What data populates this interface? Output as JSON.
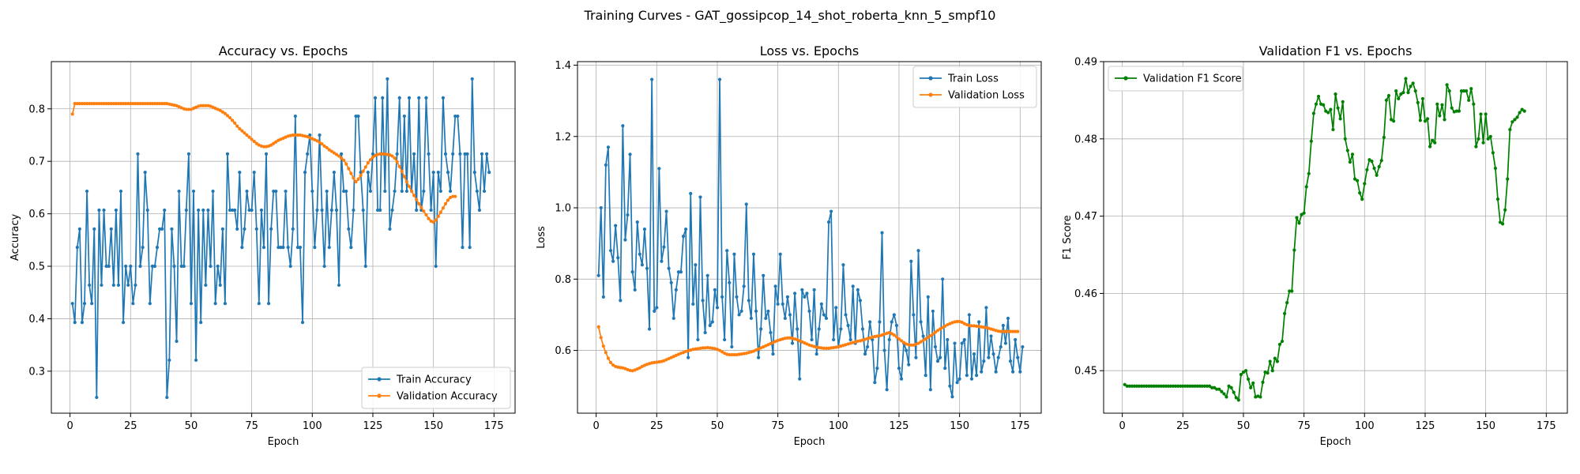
{
  "figure": {
    "suptitle": "Training Curves - GAT_gossipcop_14_shot_roberta_knn_5_smpf10"
  },
  "colors": {
    "train": "#1f77b4",
    "validation": "#ff7f0e",
    "f1": "#008000",
    "grid": "#b0b0b0",
    "axis": "#000000"
  },
  "chart_data": [
    {
      "type": "line",
      "title": "Accuracy vs. Epochs",
      "xlabel": "Epoch",
      "ylabel": "Accuracy",
      "xlim": [
        -7.7,
        183.7
      ],
      "ylim": [
        0.22,
        0.89
      ],
      "xticks": [
        0,
        25,
        50,
        75,
        100,
        125,
        150,
        175
      ],
      "yticks": [
        0.3,
        0.4,
        0.5,
        0.6,
        0.7,
        0.8
      ],
      "ytick_format": 1,
      "grid": true,
      "legend": "lower-right",
      "series": [
        {
          "name": "Train Accuracy",
          "color": "#1f77b4",
          "x_start": 1,
          "values": [
            0.429,
            0.393,
            0.536,
            0.571,
            0.393,
            0.429,
            0.643,
            0.464,
            0.429,
            0.571,
            0.25,
            0.607,
            0.464,
            0.607,
            0.5,
            0.5,
            0.571,
            0.464,
            0.607,
            0.464,
            0.643,
            0.393,
            0.5,
            0.464,
            0.5,
            0.429,
            0.464,
            0.714,
            0.5,
            0.536,
            0.679,
            0.607,
            0.429,
            0.5,
            0.5,
            0.536,
            0.571,
            0.571,
            0.607,
            0.25,
            0.321,
            0.571,
            0.5,
            0.357,
            0.643,
            0.5,
            0.5,
            0.607,
            0.714,
            0.429,
            0.643,
            0.321,
            0.607,
            0.393,
            0.607,
            0.464,
            0.607,
            0.5,
            0.643,
            0.429,
            0.5,
            0.464,
            0.571,
            0.429,
            0.714,
            0.607,
            0.607,
            0.607,
            0.571,
            0.679,
            0.536,
            0.571,
            0.643,
            0.607,
            0.607,
            0.679,
            0.571,
            0.429,
            0.607,
            0.536,
            0.714,
            0.429,
            0.571,
            0.643,
            0.643,
            0.536,
            0.536,
            0.536,
            0.643,
            0.536,
            0.5,
            0.571,
            0.786,
            0.536,
            0.536,
            0.393,
            0.679,
            0.714,
            0.75,
            0.643,
            0.536,
            0.607,
            0.75,
            0.607,
            0.5,
            0.643,
            0.536,
            0.607,
            0.679,
            0.607,
            0.464,
            0.714,
            0.643,
            0.643,
            0.571,
            0.536,
            0.607,
            0.786,
            0.786,
            0.679,
            0.607,
            0.5,
            0.679,
            0.643,
            0.714,
            0.821,
            0.607,
            0.607,
            0.821,
            0.643,
            0.857,
            0.571,
            0.607,
            0.643,
            0.714,
            0.821,
            0.643,
            0.786,
            0.643,
            0.821,
            0.643,
            0.714,
            0.607,
            0.821,
            0.607,
            0.643,
            0.821,
            0.714,
            0.607,
            0.679,
            0.5,
            0.679,
            0.643,
            0.821,
            0.714,
            0.679,
            0.643,
            0.714,
            0.786,
            0.786,
            0.714,
            0.536,
            0.714,
            0.714,
            0.536,
            0.857,
            0.679,
            0.643,
            0.607,
            0.714,
            0.643,
            0.714,
            0.679
          ]
        },
        {
          "name": "Validation Accuracy",
          "color": "#ff7f0e",
          "x_start": 1,
          "values": [
            0.79,
            0.81,
            0.81,
            0.81,
            0.81,
            0.81,
            0.81,
            0.81,
            0.81,
            0.81,
            0.81,
            0.81,
            0.81,
            0.81,
            0.81,
            0.81,
            0.81,
            0.81,
            0.81,
            0.81,
            0.81,
            0.81,
            0.81,
            0.81,
            0.81,
            0.81,
            0.81,
            0.81,
            0.81,
            0.81,
            0.81,
            0.81,
            0.81,
            0.81,
            0.81,
            0.81,
            0.81,
            0.81,
            0.81,
            0.81,
            0.809,
            0.808,
            0.807,
            0.806,
            0.804,
            0.802,
            0.8,
            0.799,
            0.799,
            0.799,
            0.801,
            0.803,
            0.805,
            0.806,
            0.806,
            0.806,
            0.806,
            0.805,
            0.803,
            0.801,
            0.799,
            0.797,
            0.794,
            0.791,
            0.787,
            0.783,
            0.778,
            0.773,
            0.767,
            0.762,
            0.758,
            0.754,
            0.75,
            0.746,
            0.742,
            0.738,
            0.734,
            0.731,
            0.729,
            0.728,
            0.728,
            0.729,
            0.731,
            0.734,
            0.737,
            0.74,
            0.742,
            0.744,
            0.746,
            0.748,
            0.749,
            0.75,
            0.75,
            0.75,
            0.75,
            0.749,
            0.748,
            0.747,
            0.745,
            0.743,
            0.741,
            0.739,
            0.736,
            0.733,
            0.729,
            0.726,
            0.722,
            0.719,
            0.716,
            0.713,
            0.71,
            0.706,
            0.702,
            0.695,
            0.686,
            0.677,
            0.668,
            0.661,
            0.666,
            0.673,
            0.681,
            0.689,
            0.697,
            0.703,
            0.708,
            0.711,
            0.713,
            0.714,
            0.714,
            0.714,
            0.713,
            0.712,
            0.71,
            0.706,
            0.699,
            0.69,
            0.681,
            0.671,
            0.661,
            0.652,
            0.643,
            0.635,
            0.627,
            0.619,
            0.612,
            0.605,
            0.598,
            0.591,
            0.586,
            0.584,
            0.588,
            0.595,
            0.603,
            0.611,
            0.619,
            0.626,
            0.631,
            0.633,
            0.633
          ]
        }
      ]
    },
    {
      "type": "line",
      "title": "Loss vs. Epochs",
      "xlabel": "Epoch",
      "ylabel": "Loss",
      "xlim": [
        -7.7,
        183.7
      ],
      "ylim": [
        0.424,
        1.41
      ],
      "xticks": [
        0,
        25,
        50,
        75,
        100,
        125,
        150,
        175
      ],
      "yticks": [
        0.6,
        0.8,
        1.0,
        1.2,
        1.4
      ],
      "ytick_format": 1,
      "grid": true,
      "legend": "upper-right",
      "series": [
        {
          "name": "Train Loss",
          "color": "#1f77b4",
          "x_start": 1,
          "values": [
            0.81,
            1.0,
            0.75,
            1.12,
            1.17,
            0.88,
            0.85,
            0.95,
            0.86,
            0.74,
            1.23,
            0.91,
            0.98,
            1.15,
            0.82,
            0.77,
            0.96,
            0.87,
            0.84,
            0.94,
            0.83,
            0.66,
            1.36,
            0.71,
            0.72,
            1.11,
            0.85,
            0.89,
            0.99,
            0.83,
            0.79,
            0.69,
            0.77,
            0.82,
            0.82,
            0.92,
            0.94,
            0.58,
            1.04,
            0.73,
            0.84,
            0.63,
            1.03,
            0.74,
            0.65,
            0.81,
            0.67,
            0.68,
            0.77,
            0.72,
            1.36,
            0.75,
            0.63,
            0.88,
            0.79,
            0.61,
            0.87,
            0.75,
            0.7,
            0.71,
            0.78,
            1.01,
            0.74,
            0.69,
            0.87,
            0.71,
            0.58,
            0.66,
            0.81,
            0.69,
            0.71,
            0.65,
            0.59,
            0.78,
            0.73,
            0.87,
            0.73,
            0.69,
            0.75,
            0.7,
            0.62,
            0.76,
            0.66,
            0.52,
            0.77,
            0.75,
            0.76,
            0.71,
            0.63,
            0.77,
            0.59,
            0.66,
            0.73,
            0.7,
            0.69,
            0.96,
            0.99,
            0.63,
            0.72,
            0.61,
            0.66,
            0.84,
            0.7,
            0.67,
            0.63,
            0.78,
            0.62,
            0.77,
            0.74,
            0.66,
            0.59,
            0.61,
            0.68,
            0.63,
            0.51,
            0.55,
            0.68,
            0.93,
            0.6,
            0.49,
            0.63,
            0.68,
            0.7,
            0.67,
            0.55,
            0.52,
            0.62,
            0.6,
            0.56,
            0.85,
            0.7,
            0.58,
            0.88,
            0.68,
            0.64,
            0.53,
            0.75,
            0.49,
            0.71,
            0.61,
            0.57,
            0.58,
            0.8,
            0.55,
            0.63,
            0.5,
            0.47,
            0.62,
            0.51,
            0.52,
            0.62,
            0.63,
            0.53,
            0.7,
            0.52,
            0.59,
            0.53,
            0.68,
            0.54,
            0.57,
            0.72,
            0.58,
            0.64,
            0.59,
            0.54,
            0.58,
            0.61,
            0.67,
            0.62,
            0.69,
            0.57,
            0.54,
            0.63,
            0.58,
            0.54,
            0.61
          ]
        },
        {
          "name": "Validation Loss",
          "color": "#ff7f0e",
          "x_start": 1,
          "values": [
            0.666,
            0.636,
            0.612,
            0.594,
            0.578,
            0.566,
            0.559,
            0.555,
            0.553,
            0.552,
            0.551,
            0.549,
            0.546,
            0.544,
            0.543,
            0.545,
            0.548,
            0.551,
            0.555,
            0.558,
            0.561,
            0.563,
            0.565,
            0.566,
            0.567,
            0.568,
            0.569,
            0.571,
            0.574,
            0.577,
            0.58,
            0.583,
            0.586,
            0.589,
            0.592,
            0.594,
            0.597,
            0.599,
            0.601,
            0.603,
            0.604,
            0.605,
            0.606,
            0.607,
            0.607,
            0.608,
            0.607,
            0.606,
            0.605,
            0.603,
            0.6,
            0.596,
            0.592,
            0.589,
            0.588,
            0.588,
            0.588,
            0.588,
            0.589,
            0.59,
            0.591,
            0.592,
            0.594,
            0.596,
            0.598,
            0.601,
            0.604,
            0.607,
            0.61,
            0.613,
            0.616,
            0.619,
            0.622,
            0.625,
            0.628,
            0.63,
            0.632,
            0.634,
            0.635,
            0.635,
            0.634,
            0.632,
            0.63,
            0.627,
            0.624,
            0.621,
            0.618,
            0.615,
            0.613,
            0.611,
            0.609,
            0.608,
            0.607,
            0.606,
            0.606,
            0.606,
            0.607,
            0.608,
            0.609,
            0.61,
            0.612,
            0.614,
            0.616,
            0.618,
            0.62,
            0.622,
            0.624,
            0.626,
            0.627,
            0.629,
            0.631,
            0.633,
            0.635,
            0.637,
            0.639,
            0.64,
            0.641,
            0.643,
            0.646,
            0.648,
            0.65,
            0.647,
            0.643,
            0.638,
            0.632,
            0.627,
            0.622,
            0.618,
            0.616,
            0.615,
            0.615,
            0.617,
            0.62,
            0.624,
            0.628,
            0.632,
            0.637,
            0.641,
            0.646,
            0.651,
            0.656,
            0.66,
            0.664,
            0.668,
            0.672,
            0.675,
            0.678,
            0.68,
            0.681,
            0.681,
            0.679,
            0.675,
            0.672,
            0.67,
            0.669,
            0.669,
            0.668,
            0.667,
            0.666,
            0.665,
            0.664,
            0.662,
            0.66,
            0.658,
            0.656,
            0.654,
            0.653,
            0.653,
            0.653,
            0.653,
            0.653,
            0.653,
            0.653,
            0.653
          ]
        }
      ]
    },
    {
      "type": "line",
      "title": "Validation F1 vs. Epochs",
      "xlabel": "Epoch",
      "ylabel": "F1 Score",
      "xlim": [
        -7.7,
        183.7
      ],
      "ylim": [
        0.4445,
        0.49
      ],
      "xticks": [
        0,
        25,
        50,
        75,
        100,
        125,
        150,
        175
      ],
      "yticks": [
        0.45,
        0.46,
        0.47,
        0.48,
        0.49
      ],
      "ytick_format": 2,
      "grid": true,
      "legend": "upper-left",
      "series": [
        {
          "name": "Validation F1 Score",
          "color": "#008000",
          "x_start": 1,
          "values": [
            0.4482,
            0.448,
            0.448,
            0.448,
            0.448,
            0.448,
            0.448,
            0.448,
            0.448,
            0.448,
            0.448,
            0.448,
            0.448,
            0.448,
            0.448,
            0.448,
            0.448,
            0.448,
            0.448,
            0.448,
            0.448,
            0.448,
            0.448,
            0.448,
            0.448,
            0.448,
            0.448,
            0.448,
            0.448,
            0.448,
            0.448,
            0.448,
            0.448,
            0.448,
            0.448,
            0.448,
            0.4478,
            0.4478,
            0.4476,
            0.4476,
            0.4473,
            0.447,
            0.4466,
            0.448,
            0.4478,
            0.4472,
            0.4465,
            0.4462,
            0.4495,
            0.4498,
            0.45,
            0.4489,
            0.4478,
            0.4484,
            0.4466,
            0.4467,
            0.4466,
            0.4485,
            0.4498,
            0.4497,
            0.4512,
            0.45,
            0.4516,
            0.4512,
            0.4534,
            0.4538,
            0.4574,
            0.4588,
            0.4603,
            0.4603,
            0.4656,
            0.4698,
            0.4691,
            0.4702,
            0.4704,
            0.4738,
            0.4755,
            0.4797,
            0.4833,
            0.4845,
            0.4855,
            0.4845,
            0.4844,
            0.4836,
            0.4834,
            0.4838,
            0.4812,
            0.4858,
            0.484,
            0.4826,
            0.4848,
            0.48,
            0.4785,
            0.477,
            0.478,
            0.4748,
            0.4746,
            0.473,
            0.4722,
            0.4742,
            0.476,
            0.4773,
            0.4771,
            0.4762,
            0.4753,
            0.4764,
            0.4772,
            0.4802,
            0.485,
            0.4856,
            0.4825,
            0.4823,
            0.4862,
            0.4852,
            0.4858,
            0.486,
            0.4878,
            0.486,
            0.4868,
            0.4872,
            0.4862,
            0.4847,
            0.4824,
            0.4852,
            0.4823,
            0.4826,
            0.479,
            0.4798,
            0.4795,
            0.4845,
            0.483,
            0.4844,
            0.4825,
            0.487,
            0.4862,
            0.484,
            0.4835,
            0.4836,
            0.4836,
            0.4862,
            0.4862,
            0.4862,
            0.485,
            0.4865,
            0.4845,
            0.479,
            0.48,
            0.4832,
            0.4795,
            0.4832,
            0.48,
            0.4803,
            0.4782,
            0.4762,
            0.4722,
            0.4692,
            0.469,
            0.4708,
            0.4748,
            0.4812,
            0.4822,
            0.4825,
            0.4828,
            0.4834,
            0.4838,
            0.4836
          ]
        }
      ]
    }
  ]
}
